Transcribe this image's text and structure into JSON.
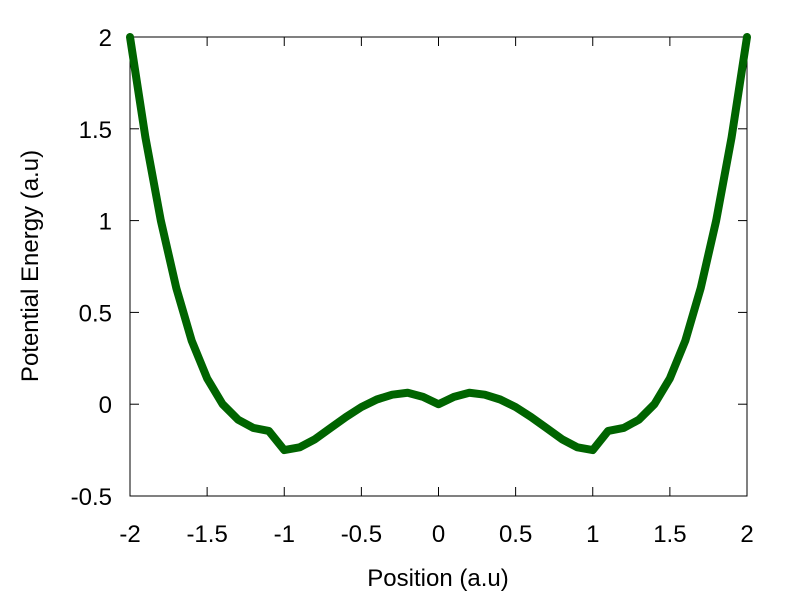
{
  "chart_data": {
    "type": "line",
    "xlabel": "Position (a.u)",
    "ylabel": "Potential Energy (a.u)",
    "xlim": [
      -2,
      2
    ],
    "ylim": [
      -0.5,
      2
    ],
    "x_ticks": [
      "-2",
      "-1.5",
      "-1",
      "-0.5",
      "0",
      "0.5",
      "1",
      "1.5",
      "2"
    ],
    "y_ticks": [
      "-0.5",
      "0",
      "0.5",
      "1",
      "1.5",
      "2"
    ],
    "grid": false,
    "series": [
      {
        "color": "#006400",
        "x": [
          -2.0,
          -1.9,
          -1.8,
          -1.7,
          -1.6,
          -1.5,
          -1.4,
          -1.3,
          -1.2,
          -1.1,
          -1.0,
          -0.9,
          -0.8,
          -0.7,
          -0.6,
          -0.5,
          -0.4,
          -0.3,
          -0.2,
          -0.1,
          0.0,
          0.1,
          0.2,
          0.3,
          0.4,
          0.5,
          0.6,
          0.7,
          0.8,
          0.9,
          1.0,
          1.1,
          1.2,
          1.3,
          1.4,
          1.5,
          1.6,
          1.7,
          1.8,
          1.9,
          2.0
        ],
        "y": [
          2.0,
          1.4525,
          0.9996,
          0.6331,
          0.3456,
          0.1406,
          0.0004,
          -0.0839,
          -0.1296,
          -0.1456,
          -0.25,
          -0.2349,
          -0.1904,
          -0.1299,
          -0.0696,
          -0.0156,
          0.0256,
          0.0519,
          0.0624,
          0.0399,
          0.0,
          0.0399,
          0.0624,
          0.0519,
          0.0256,
          -0.0156,
          -0.0696,
          -0.1299,
          -0.1904,
          -0.2349,
          -0.25,
          -0.1456,
          -0.1296,
          -0.0839,
          0.0004,
          0.1406,
          0.3456,
          0.6331,
          0.9996,
          1.4525,
          2.0
        ]
      }
    ]
  }
}
